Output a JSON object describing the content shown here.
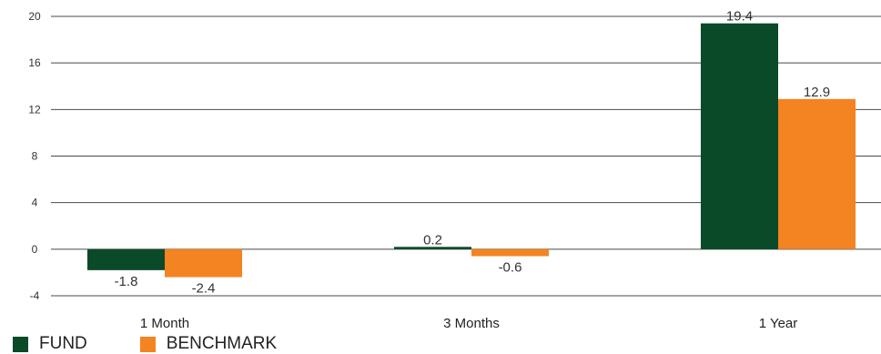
{
  "chart_data": {
    "type": "bar",
    "categories": [
      "1 Month",
      "3 Months",
      "1 Year"
    ],
    "series": [
      {
        "name": "FUND",
        "color": "#0b4a28",
        "values": [
          -1.8,
          0.2,
          19.4
        ]
      },
      {
        "name": "BENCHMARK",
        "color": "#f48322",
        "values": [
          -2.4,
          -0.6,
          12.9
        ]
      }
    ],
    "data_labels": [
      [
        "-1.8",
        "0.2",
        "19.4"
      ],
      [
        "-2.4",
        "-0.6",
        "12.9"
      ]
    ],
    "yticks": [
      "20",
      "16",
      "12",
      "8",
      "4",
      "0",
      "-4"
    ],
    "ytick_values": [
      20,
      16,
      12,
      8,
      4,
      0,
      -4
    ],
    "ylim": [
      -4,
      20
    ],
    "grid": true,
    "legend_position": "bottom-left",
    "title": "",
    "xlabel": "",
    "ylabel": ""
  }
}
